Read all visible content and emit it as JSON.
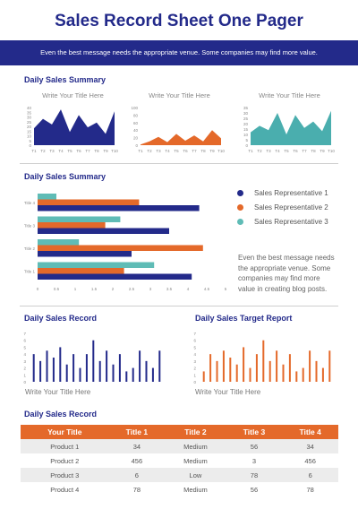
{
  "header": {
    "title": "Sales Record Sheet One Pager",
    "banner_text": "Even the best message needs the appropriate venue. Some companies may find more value."
  },
  "section1": {
    "heading": "Daily Sales Summary",
    "charts": [
      {
        "subtitle": "Write Your Title Here",
        "color": "#232a8a"
      },
      {
        "subtitle": "Write Your Title Here",
        "color": "#e4692a"
      },
      {
        "subtitle": "Write Your Title Here",
        "color": "#4aaeae"
      }
    ]
  },
  "section2": {
    "heading": "Daily Sales Summary",
    "legend": [
      {
        "label": "Sales Representative 1",
        "color": "#232a8a"
      },
      {
        "label": "Sales Representative 2",
        "color": "#e4692a"
      },
      {
        "label": "Sales Representative 3",
        "color": "#5fbcb6"
      }
    ],
    "note": "Even the best message needs the appropriate venue. Some companies may find more value in creating blog posts."
  },
  "section3": {
    "left_heading": "Daily Sales Record",
    "right_heading": "Daily Sales Target Report",
    "left_caption": "Write Your Title Here",
    "right_caption": "Write Your Title Here",
    "left_color": "#232a8a",
    "right_color": "#e4692a"
  },
  "section4": {
    "heading": "Daily Sales Record",
    "columns": [
      "Your Title",
      "Title 1",
      "Title 2",
      "Title 3",
      "Title 4"
    ],
    "rows": [
      [
        "Product 1",
        "34",
        "Medium",
        "56",
        "34"
      ],
      [
        "Product 2",
        "456",
        "Medium",
        "3",
        "456"
      ],
      [
        "Product 3",
        "6",
        "Low",
        "78",
        "6"
      ],
      [
        "Product 4",
        "78",
        "Medium",
        "56",
        "78"
      ]
    ]
  },
  "chart_data": [
    {
      "type": "area",
      "x": [
        "T1",
        "T2",
        "T3",
        "T4",
        "T5",
        "T6",
        "T7",
        "T8",
        "T9",
        "T10"
      ],
      "yticks": [
        "0",
        "5",
        "10",
        "15",
        "20",
        "25",
        "30",
        "35",
        "40"
      ],
      "ylim": [
        0,
        40
      ],
      "values": [
        18,
        28,
        22,
        38,
        14,
        32,
        19,
        24,
        12,
        36
      ]
    },
    {
      "type": "area",
      "x": [
        "T1",
        "T2",
        "T3",
        "T4",
        "T5",
        "T6",
        "T7",
        "T8",
        "T9",
        "T10"
      ],
      "yticks": [
        "0",
        "20",
        "40",
        "60",
        "80",
        "100"
      ],
      "ylim": [
        0,
        100
      ],
      "values": [
        2,
        10,
        22,
        8,
        30,
        12,
        26,
        10,
        40,
        18
      ]
    },
    {
      "type": "area",
      "x": [
        "T1",
        "T2",
        "T3",
        "T4",
        "T5",
        "T6",
        "T7",
        "T8",
        "T9",
        "T10"
      ],
      "yticks": [
        "0",
        "5",
        "10",
        "15",
        "20",
        "25",
        "30",
        "35"
      ],
      "ylim": [
        0,
        35
      ],
      "values": [
        12,
        18,
        14,
        30,
        10,
        28,
        16,
        22,
        13,
        32
      ]
    },
    {
      "type": "bar",
      "orientation": "horizontal",
      "categories": [
        "Title 4",
        "Title 3",
        "Title 2",
        "Title 1"
      ],
      "xticks": [
        "0",
        "0.5",
        "1",
        "1.5",
        "2",
        "2.5",
        "3",
        "3.5",
        "4",
        "4.5",
        "5"
      ],
      "xlim": [
        0,
        5
      ],
      "series": [
        {
          "name": "Sales Representative 1",
          "values": [
            4.3,
            3.5,
            2.5,
            4.1
          ]
        },
        {
          "name": "Sales Representative 2",
          "values": [
            2.7,
            1.8,
            4.4,
            2.3
          ]
        },
        {
          "name": "Sales Representative 3",
          "values": [
            0.5,
            2.2,
            1.1,
            3.1
          ]
        }
      ]
    },
    {
      "type": "bar",
      "yticks": [
        "0",
        "1",
        "2",
        "3",
        "4",
        "5",
        "6",
        "7"
      ],
      "ylim": [
        0,
        7
      ],
      "values": [
        4,
        3,
        4.5,
        3.5,
        5,
        2.5,
        4,
        2,
        4,
        6,
        3,
        4.5,
        2.5,
        4,
        1.5,
        2,
        4.5,
        3,
        2,
        4.5
      ]
    },
    {
      "type": "bar",
      "yticks": [
        "0",
        "1",
        "2",
        "3",
        "4",
        "5",
        "6",
        "7"
      ],
      "ylim": [
        0,
        7
      ],
      "values": [
        1.5,
        4,
        3,
        4.5,
        3.5,
        2.5,
        5,
        2,
        4,
        6,
        3,
        4.5,
        2.5,
        4,
        1.5,
        2,
        4.5,
        3,
        2,
        4.5
      ]
    }
  ]
}
